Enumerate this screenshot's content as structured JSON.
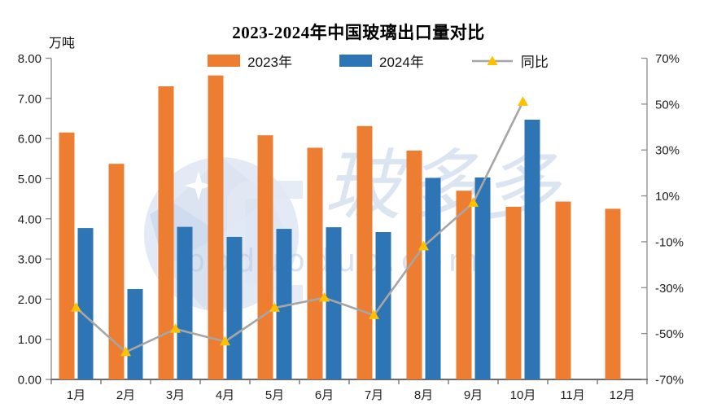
{
  "title": "2023-2024年中国玻璃出口量对比",
  "legend": [
    {
      "label": "2023年",
      "color": "#ED7D31",
      "type": "bar"
    },
    {
      "label": "2024年",
      "color": "#2E75B6",
      "type": "bar"
    },
    {
      "label": "同比",
      "color": "#A6A6A6",
      "marker_color": "#FFC000",
      "type": "line"
    }
  ],
  "watermark": {
    "brand": "玻多多",
    "domain": "boduoduo.com"
  },
  "chart_data": {
    "type": "bar+line combo",
    "title": "2023-2024年中国玻璃出口量对比",
    "categories": [
      "1月",
      "2月",
      "3月",
      "4月",
      "5月",
      "6月",
      "7月",
      "8月",
      "9月",
      "10月",
      "11月",
      "12月"
    ],
    "series": [
      {
        "name": "2023年",
        "type": "bar",
        "axis": "left",
        "color": "#ED7D31",
        "values": [
          6.15,
          5.37,
          7.3,
          7.57,
          6.08,
          5.77,
          6.31,
          5.7,
          4.7,
          4.3,
          4.43,
          4.25
        ]
      },
      {
        "name": "2024年",
        "type": "bar",
        "axis": "left",
        "color": "#2E75B6",
        "values": [
          3.77,
          2.25,
          3.8,
          3.55,
          3.75,
          3.79,
          3.67,
          5.02,
          5.03,
          6.47,
          null,
          null
        ]
      },
      {
        "name": "同比",
        "type": "line",
        "axis": "right",
        "color": "#A6A6A6",
        "marker": "triangle",
        "marker_color": "#FFC000",
        "values": [
          -38.7,
          -58.1,
          -48.0,
          -53.5,
          -38.8,
          -34.4,
          -42.0,
          -12.0,
          7.0,
          51.0,
          null,
          null
        ]
      }
    ],
    "left_axis": {
      "label": "万吨",
      "min": 0,
      "max": 8,
      "step": 1,
      "tick_format": "two-decimals"
    },
    "right_axis": {
      "min": -70,
      "max": 70,
      "step": 20,
      "suffix": "%"
    },
    "grid": false,
    "legend_position": "top-center"
  }
}
